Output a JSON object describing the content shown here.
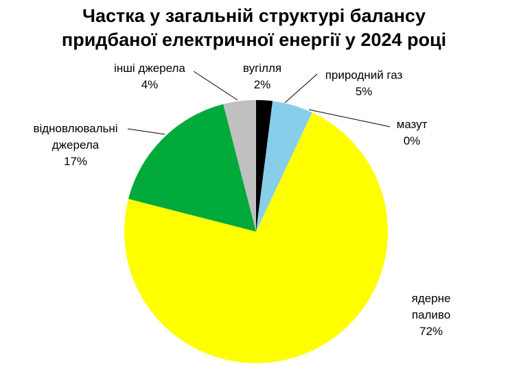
{
  "chart_data": {
    "type": "pie",
    "title": "Частка у загальній структурі балансу\nпридбаної електричної енергії у 2024 році",
    "categories": [
      "вугілля",
      "природний газ",
      "мазут",
      "ядерне паливо",
      "відновлювальні\nджерела",
      "інші джерела"
    ],
    "values": [
      2,
      5,
      0,
      72,
      17,
      4
    ],
    "value_labels": [
      "2%",
      "5%",
      "0%",
      "72%",
      "17%",
      "4%"
    ],
    "colors": [
      "#000000",
      "#87ceeb",
      "#ffa500",
      "#ffff00",
      "#00aa3a",
      "#c0c0c0"
    ]
  }
}
